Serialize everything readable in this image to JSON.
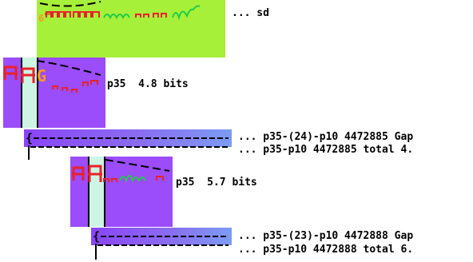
{
  "rows": [
    {
      "label": "... sd"
    },
    {
      "label": "p35  4.8 bits"
    },
    {
      "label": "... p35-(24)-p10 4472885 Gap"
    },
    {
      "label": "... p35-p10 4472885 total 4."
    },
    {
      "label": "p35  5.7 bits"
    },
    {
      "label": "... p35-(23)-p10 4472888 Gap"
    },
    {
      "label": "... p35-p10 4472888 total 6."
    }
  ],
  "colors": {
    "green_block": "#a6f03a",
    "purple_block": "#9b4cfb",
    "mint_cell": "#ccf5e4",
    "glyph_red": "#e8222a",
    "glyph_orange": "#f59a22",
    "glyph_green": "#22cc44",
    "gap_gradient_end": "#7c9cf4"
  },
  "icons": [
    "sequence-logo-glyphs",
    "dashed-trend-curve",
    "gap-bracket"
  ]
}
